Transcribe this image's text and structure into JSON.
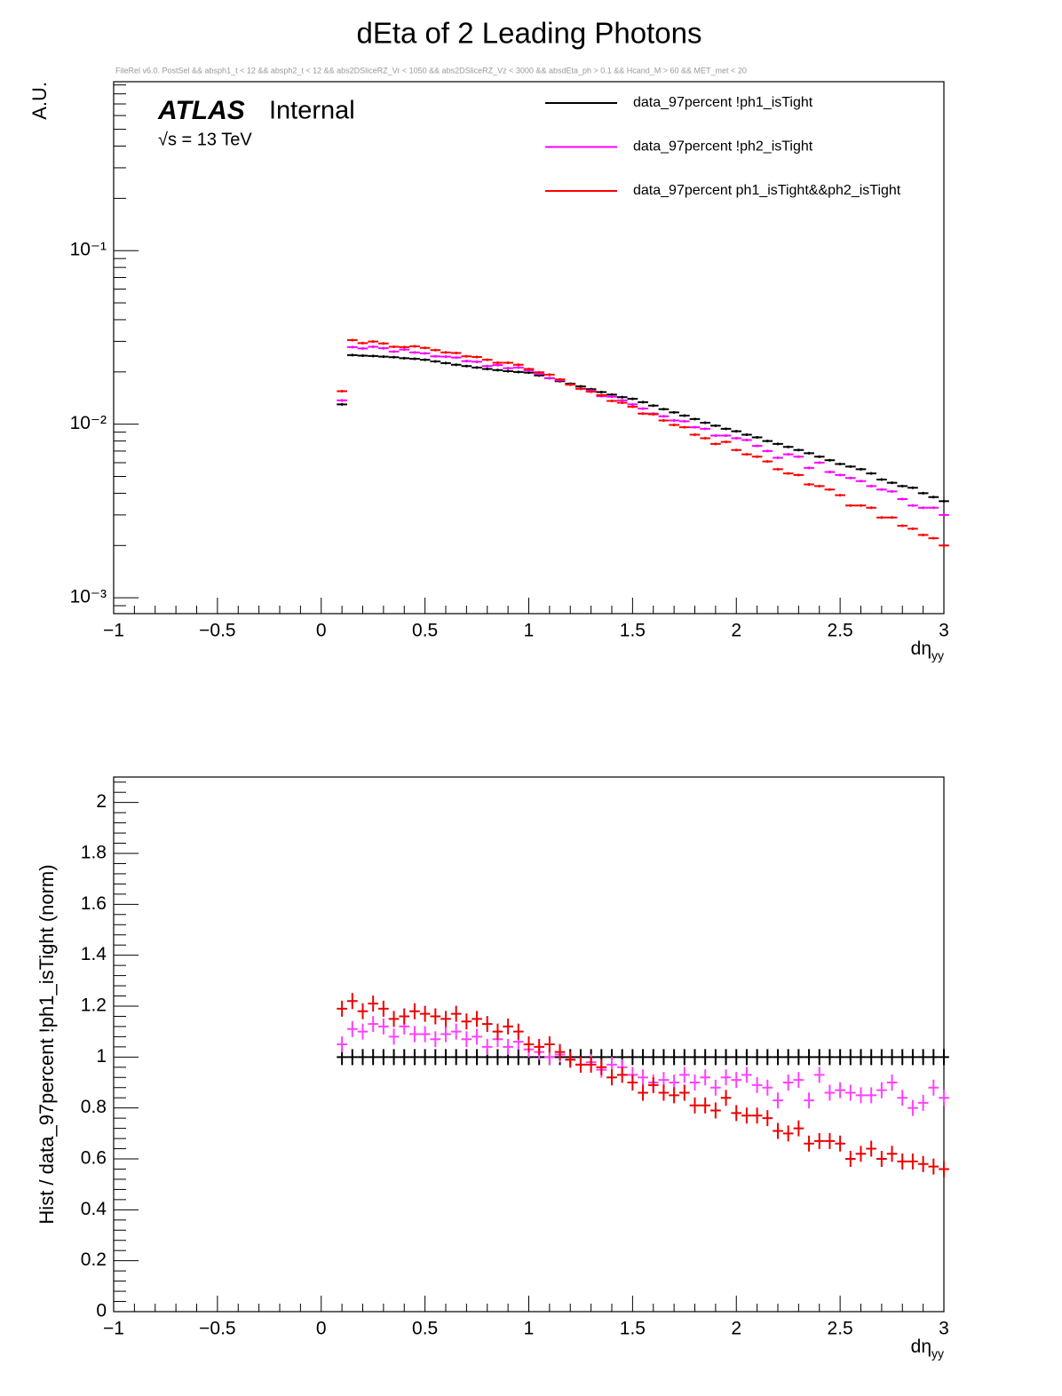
{
  "title": "dEta of 2 Leading Photons",
  "chart_data": [
    {
      "type": "errorbar",
      "subtitle": "FileRel v6.0. PostSel &&  absph1_t < 12 && absph2_t < 12 && abs2DSliceRZ_Vr < 1050 && abs2DSliceRZ_Vz < 3000 && absdEta_ph > 0.1 && Hcand_M > 60 && MET_met < 20",
      "annotations": [
        "ATLAS",
        "Internal",
        "√s = 13 TeV"
      ],
      "ylabel": "A.U.",
      "xlabel": "dη",
      "xlabel_subscript": "yy",
      "log_y": true,
      "legend": "top-right",
      "xlim": [
        -1,
        3
      ],
      "xticks": [
        {
          "value": -1,
          "label": "−1"
        },
        {
          "value": -0.5,
          "label": "−0.5"
        },
        0,
        0.5,
        1,
        1.5,
        2,
        2.5,
        3
      ],
      "ylim": [
        0.00081,
        0.94
      ],
      "yticks": [
        {
          "value": 0.001,
          "label": "10⁻³"
        },
        {
          "value": 0.01,
          "label": "10⁻²"
        },
        {
          "value": 0.1,
          "label": "10⁻¹"
        }
      ],
      "x": [
        0.1,
        0.15,
        0.2,
        0.25,
        0.3,
        0.35,
        0.4,
        0.45,
        0.5,
        0.55,
        0.6,
        0.65,
        0.7,
        0.75,
        0.8,
        0.85,
        0.9,
        0.95,
        1,
        1.05,
        1.1,
        1.15,
        1.2,
        1.25,
        1.3,
        1.35,
        1.4,
        1.45,
        1.5,
        1.55,
        1.6,
        1.65,
        1.7,
        1.75,
        1.8,
        1.85,
        1.9,
        1.95,
        2,
        2.05,
        2.1,
        2.15,
        2.2,
        2.25,
        2.3,
        2.35,
        2.4,
        2.45,
        2.5,
        2.55,
        2.6,
        2.65,
        2.7,
        2.75,
        2.8,
        2.85,
        2.9,
        2.95,
        3
      ],
      "series": [
        {
          "name": "data_97percent !ph1_isTight",
          "color": "#000000",
          "values": [
            0.013,
            0.025,
            0.0248,
            0.0247,
            0.0245,
            0.0243,
            0.024,
            0.0238,
            0.0235,
            0.023,
            0.0225,
            0.022,
            0.0216,
            0.0212,
            0.0208,
            0.0205,
            0.0202,
            0.02,
            0.0198,
            0.0191,
            0.0184,
            0.0177,
            0.0171,
            0.0165,
            0.0159,
            0.0153,
            0.0148,
            0.0143,
            0.014,
            0.0134,
            0.0128,
            0.0122,
            0.0117,
            0.0112,
            0.0107,
            0.0102,
            0.0098,
            0.0094,
            0.0091,
            0.0087,
            0.0084,
            0.008,
            0.0077,
            0.0074,
            0.0071,
            0.0068,
            0.0065,
            0.0062,
            0.0059,
            0.0057,
            0.0055,
            0.0052,
            0.0048,
            0.0046,
            0.0044,
            0.0043,
            0.004,
            0.0038,
            0.0036
          ]
        },
        {
          "name": "data_97percent !ph2_isTight",
          "color": "#ff00ff",
          "values": [
            0.0137,
            0.0278,
            0.0273,
            0.0279,
            0.0274,
            0.0262,
            0.0269,
            0.0259,
            0.0256,
            0.0246,
            0.0245,
            0.0242,
            0.0231,
            0.0229,
            0.0216,
            0.0219,
            0.021,
            0.0212,
            0.0204,
            0.0195,
            0.0184,
            0.0179,
            0.0169,
            0.016,
            0.0156,
            0.0145,
            0.0144,
            0.0137,
            0.013,
            0.0123,
            0.0115,
            0.0111,
            0.0105,
            0.0104,
            0.0096,
            0.0094,
            0.0086,
            0.0086,
            0.0083,
            0.0081,
            0.0075,
            0.007,
            0.0064,
            0.0067,
            0.0065,
            0.0056,
            0.006,
            0.0053,
            0.0051,
            0.0049,
            0.0047,
            0.0044,
            0.0042,
            0.0041,
            0.0037,
            0.0034,
            0.0033,
            0.0033,
            0.003
          ]
        },
        {
          "name": "data_97percent ph1_isTight&&ph2_isTight",
          "color": "#ff0000",
          "values": [
            0.0155,
            0.0305,
            0.0293,
            0.0299,
            0.0292,
            0.0279,
            0.0278,
            0.0281,
            0.0275,
            0.0267,
            0.0259,
            0.0257,
            0.0246,
            0.0244,
            0.0235,
            0.0226,
            0.0226,
            0.022,
            0.0208,
            0.0199,
            0.0193,
            0.0181,
            0.0169,
            0.016,
            0.0154,
            0.0147,
            0.0136,
            0.0133,
            0.0126,
            0.0115,
            0.0114,
            0.0105,
            0.0099,
            0.0096,
            0.0087,
            0.0083,
            0.0077,
            0.0079,
            0.0071,
            0.0067,
            0.0065,
            0.0061,
            0.0055,
            0.0052,
            0.0051,
            0.0045,
            0.0044,
            0.0042,
            0.0039,
            0.0034,
            0.0034,
            0.0033,
            0.0029,
            0.0029,
            0.0026,
            0.0025,
            0.0023,
            0.0022,
            0.002
          ]
        }
      ]
    },
    {
      "type": "errorbar",
      "ylabel": "Hist / data_97percent !ph1_isTight (norm)",
      "xlabel": "dη",
      "xlabel_subscript": "yy",
      "log_y": false,
      "xlim": [
        -1,
        3
      ],
      "xticks": [
        {
          "value": -1,
          "label": "−1"
        },
        {
          "value": -0.5,
          "label": "−0.5"
        },
        0,
        0.5,
        1,
        1.5,
        2,
        2.5,
        3
      ],
      "ylim": [
        0,
        2.1
      ],
      "yticks": [
        0,
        0.2,
        0.4,
        0.6,
        0.8,
        1,
        1.2,
        1.4,
        1.6,
        1.8,
        2
      ],
      "x": [
        0.1,
        0.15,
        0.2,
        0.25,
        0.3,
        0.35,
        0.4,
        0.45,
        0.5,
        0.55,
        0.6,
        0.65,
        0.7,
        0.75,
        0.8,
        0.85,
        0.9,
        0.95,
        1,
        1.05,
        1.1,
        1.15,
        1.2,
        1.25,
        1.3,
        1.35,
        1.4,
        1.45,
        1.5,
        1.55,
        1.6,
        1.65,
        1.7,
        1.75,
        1.8,
        1.85,
        1.9,
        1.95,
        2,
        2.05,
        2.1,
        2.15,
        2.2,
        2.25,
        2.3,
        2.35,
        2.4,
        2.45,
        2.5,
        2.55,
        2.6,
        2.65,
        2.7,
        2.75,
        2.8,
        2.85,
        2.9,
        2.95,
        3
      ],
      "series": [
        {
          "color": "#000000",
          "values": [
            1,
            1,
            1,
            1,
            1,
            1,
            1,
            1,
            1,
            1,
            1,
            1,
            1,
            1,
            1,
            1,
            1,
            1,
            1,
            1,
            1,
            1,
            1,
            1,
            1,
            1,
            1,
            1,
            1,
            1,
            1,
            1,
            1,
            1,
            1,
            1,
            1,
            1,
            1,
            1,
            1,
            1,
            1,
            1,
            1,
            1,
            1,
            1,
            1,
            1,
            1,
            1,
            1,
            1,
            1,
            1,
            1,
            1,
            1
          ]
        },
        {
          "color": "#ff40ff",
          "values": [
            1.05,
            1.11,
            1.1,
            1.13,
            1.12,
            1.08,
            1.12,
            1.09,
            1.09,
            1.07,
            1.09,
            1.1,
            1.07,
            1.08,
            1.04,
            1.07,
            1.04,
            1.06,
            1.03,
            1.02,
            1.0,
            1.01,
            0.99,
            0.97,
            0.98,
            0.95,
            0.97,
            0.96,
            0.93,
            0.92,
            0.9,
            0.91,
            0.9,
            0.93,
            0.9,
            0.92,
            0.88,
            0.92,
            0.91,
            0.93,
            0.89,
            0.88,
            0.83,
            0.9,
            0.91,
            0.83,
            0.93,
            0.86,
            0.87,
            0.86,
            0.85,
            0.85,
            0.87,
            0.9,
            0.84,
            0.8,
            0.82,
            0.88,
            0.84
          ]
        },
        {
          "color": "#ee0000",
          "values": [
            1.19,
            1.22,
            1.18,
            1.21,
            1.19,
            1.15,
            1.16,
            1.18,
            1.17,
            1.16,
            1.15,
            1.17,
            1.14,
            1.15,
            1.13,
            1.1,
            1.12,
            1.1,
            1.05,
            1.04,
            1.05,
            1.02,
            0.99,
            0.97,
            0.97,
            0.96,
            0.92,
            0.93,
            0.9,
            0.86,
            0.89,
            0.86,
            0.85,
            0.86,
            0.81,
            0.81,
            0.79,
            0.84,
            0.78,
            0.77,
            0.77,
            0.76,
            0.71,
            0.7,
            0.72,
            0.66,
            0.67,
            0.67,
            0.66,
            0.6,
            0.62,
            0.64,
            0.6,
            0.62,
            0.59,
            0.59,
            0.58,
            0.57,
            0.56
          ]
        }
      ]
    }
  ]
}
